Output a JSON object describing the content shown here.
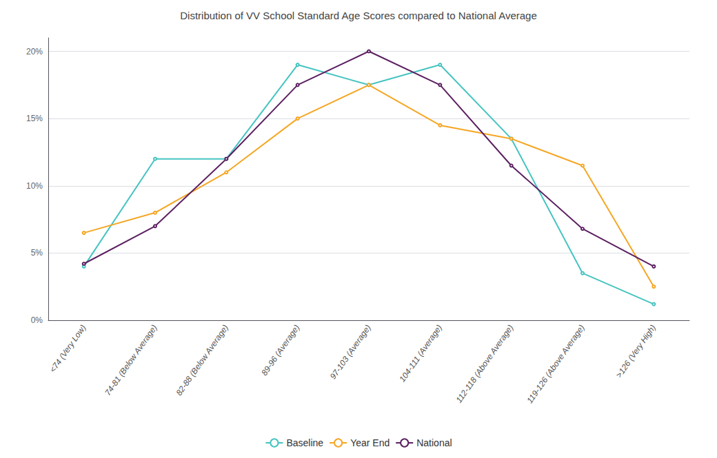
{
  "chart_data": {
    "type": "line",
    "title": "Distribution of VV School Standard Age Scores compared to National Average",
    "categories": [
      "<74 (Very Low)",
      "74-81 (Below Average)",
      "82-88 (Below Average)",
      "89-96 (Average)",
      "97-103 (Average)",
      "104-111 (Average)",
      "112-118 (Above Average)",
      "119-126 (Above Average)",
      ">126 (Very High)"
    ],
    "series": [
      {
        "name": "Baseline",
        "color": "#45C4C0",
        "values": [
          4.0,
          12.0,
          12.0,
          19.0,
          17.5,
          19.0,
          13.5,
          3.5,
          1.2
        ]
      },
      {
        "name": "Year End",
        "color": "#F5A623",
        "values": [
          6.5,
          8.0,
          11.0,
          15.0,
          17.5,
          14.5,
          13.5,
          11.5,
          2.5
        ]
      },
      {
        "name": "National",
        "color": "#5B2060",
        "values": [
          4.2,
          7.0,
          12.0,
          17.5,
          20.0,
          17.5,
          11.5,
          6.8,
          4.0
        ]
      }
    ],
    "ylim": [
      0,
      21
    ],
    "yticks": [
      {
        "value": 0,
        "label": "0%"
      },
      {
        "value": 5,
        "label": "5%"
      },
      {
        "value": 10,
        "label": "10%"
      },
      {
        "value": 15,
        "label": "15%"
      },
      {
        "value": 20,
        "label": "20%"
      }
    ],
    "grid": true,
    "legend": "bottom"
  }
}
